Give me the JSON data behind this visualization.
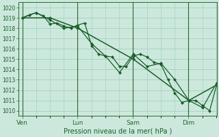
{
  "xlabel": "Pression niveau de la mer( hPa )",
  "bg_color": "#cce8dc",
  "plot_bg_color": "#cce8dc",
  "grid_color": "#99ccb8",
  "line_color": "#1a5c2a",
  "tick_label_color": "#1a5c2a",
  "axis_color": "#2a6632",
  "ylim": [
    1009.5,
    1020.5
  ],
  "yticks": [
    1010,
    1011,
    1012,
    1013,
    1014,
    1015,
    1016,
    1017,
    1018,
    1019,
    1020
  ],
  "day_labels": [
    "Ven",
    "Lun",
    "Sam",
    "Dim"
  ],
  "day_positions": [
    0.0,
    0.285,
    0.57,
    0.855
  ],
  "xlim": [
    -0.02,
    1.0
  ],
  "line1_x": [
    0.0,
    0.036,
    0.071,
    0.107,
    0.143,
    0.179,
    0.214,
    0.25,
    0.285,
    0.321,
    0.357,
    0.392,
    0.428,
    0.464,
    0.5,
    0.535,
    0.571,
    0.607,
    0.642,
    0.678,
    0.714,
    0.75,
    0.785,
    0.821,
    0.857,
    0.892,
    0.928,
    0.964,
    1.0
  ],
  "line1_y": [
    1019.0,
    1019.3,
    1019.5,
    1019.2,
    1018.4,
    1018.5,
    1018.2,
    1018.0,
    1018.3,
    1018.5,
    1016.3,
    1015.5,
    1015.3,
    1015.2,
    1014.3,
    1014.3,
    1015.3,
    1015.5,
    1015.2,
    1014.7,
    1014.5,
    1013.0,
    1011.7,
    1010.8,
    1011.0,
    1011.0,
    1010.5,
    1010.0,
    1012.5
  ],
  "line2_x": [
    0.0,
    0.071,
    0.143,
    0.214,
    0.285,
    0.357,
    0.428,
    0.5,
    0.571,
    0.642,
    0.714,
    0.785,
    0.857,
    0.928,
    1.0
  ],
  "line2_y": [
    1019.0,
    1019.5,
    1018.8,
    1018.0,
    1018.2,
    1016.5,
    1015.3,
    1013.7,
    1015.5,
    1014.3,
    1014.6,
    1013.0,
    1011.0,
    1010.3,
    1012.7
  ],
  "line3_x": [
    0.0,
    0.143,
    0.285,
    0.571,
    0.857,
    1.0
  ],
  "line3_y": [
    1019.0,
    1019.0,
    1018.0,
    1015.0,
    1011.0,
    1012.5
  ],
  "vline_positions": [
    0.0,
    0.285,
    0.57,
    0.855
  ]
}
